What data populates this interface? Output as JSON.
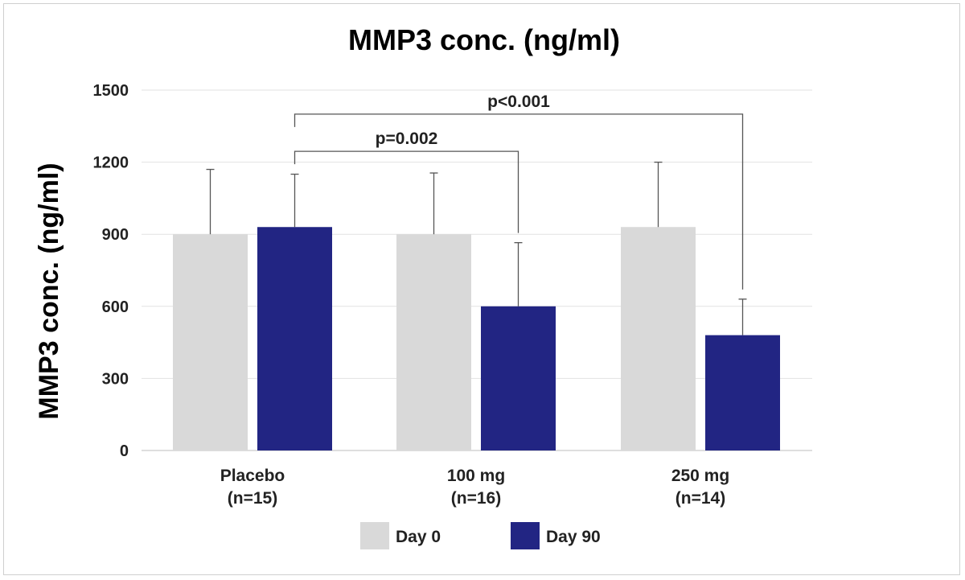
{
  "chart_data": {
    "type": "bar",
    "title": "MMP3 conc. (ng/ml)",
    "xlabel": "",
    "ylabel": "MMP3 conc. (ng/ml)",
    "ylim": [
      0,
      1500
    ],
    "yticks": [
      0,
      300,
      600,
      900,
      1200,
      1500
    ],
    "grid": true,
    "legend_position": "bottom-center",
    "categories": [
      {
        "name": "Placebo",
        "n": "(n=15)"
      },
      {
        "name": "100 mg",
        "n": "(n=16)"
      },
      {
        "name": "250 mg",
        "n": "(n=14)"
      }
    ],
    "series": [
      {
        "name": "Day 0",
        "color": "#d9d9d9",
        "values": [
          900,
          900,
          930
        ],
        "errors": [
          270,
          255,
          270
        ]
      },
      {
        "name": "Day 90",
        "color": "#222583",
        "values": [
          930,
          600,
          480
        ],
        "errors": [
          220,
          265,
          150
        ]
      }
    ],
    "annotations": [
      {
        "text": "p=0.002",
        "from": {
          "category": 0,
          "series": 1
        },
        "to": {
          "category": 1,
          "series": 1
        },
        "bracket_y": 1245
      },
      {
        "text": "p<0.001",
        "from": {
          "category": 0,
          "series": 1
        },
        "to": {
          "category": 2,
          "series": 1
        },
        "bracket_y": 1400
      }
    ]
  }
}
